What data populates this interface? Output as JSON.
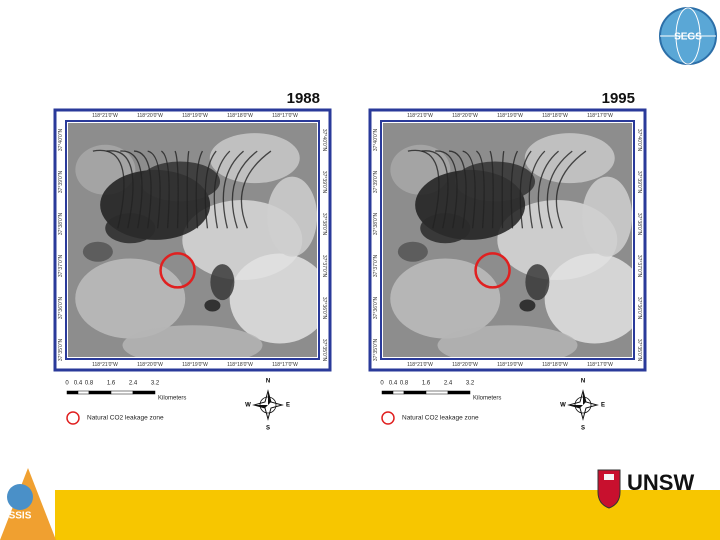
{
  "logos": {
    "top_right": "SEGS",
    "bottom_left": "SSIS",
    "bottom_right": "UNSW"
  },
  "maps": [
    {
      "title": "1988",
      "top_labels": [
        "118°21'0\"W",
        "118°20'0\"W",
        "118°19'0\"W",
        "118°18'0\"W",
        "118°17'0\"W"
      ],
      "bottom_labels": [
        "118°21'0\"W",
        "118°20'0\"W",
        "118°19'0\"W",
        "118°18'0\"W",
        "118°17'0\"W"
      ],
      "left_labels": [
        "37°40'0\"N",
        "37°39'0\"N",
        "37°38'0\"N",
        "37°37'0\"N",
        "37°36'0\"N",
        "37°35'0\"N"
      ],
      "right_labels": [
        "37°40'0\"N",
        "37°39'0\"N",
        "37°38'0\"N",
        "37°37'0\"N",
        "37°36'0\"N",
        "37°35'0\"N"
      ],
      "scale_ticks": [
        "0",
        "0.4",
        "0.8",
        "1.6",
        "2.4",
        "3.2"
      ],
      "scale_unit": "Kilometers",
      "legend": "Natural CO2 leakage zone",
      "compass": {
        "n": "N",
        "e": "E",
        "s": "S",
        "w": "W"
      }
    },
    {
      "title": "1995",
      "top_labels": [
        "118°21'0\"W",
        "118°20'0\"W",
        "118°19'0\"W",
        "118°18'0\"W",
        "118°17'0\"W"
      ],
      "bottom_labels": [
        "118°21'0\"W",
        "118°20'0\"W",
        "118°19'0\"W",
        "118°18'0\"W",
        "118°17'0\"W"
      ],
      "left_labels": [
        "37°40'0\"N",
        "37°39'0\"N",
        "37°38'0\"N",
        "37°37'0\"N",
        "37°36'0\"N",
        "37°35'0\"N"
      ],
      "right_labels": [
        "37°40'0\"N",
        "37°39'0\"N",
        "37°38'0\"N",
        "37°37'0\"N",
        "37°36'0\"N",
        "37°35'0\"N"
      ],
      "scale_ticks": [
        "0",
        "0.4",
        "0.8",
        "1.6",
        "2.4",
        "3.2"
      ],
      "scale_unit": "Kilometers",
      "legend": "Natural CO2 leakage zone",
      "compass": {
        "n": "N",
        "e": "E",
        "s": "S",
        "w": "W"
      }
    }
  ]
}
